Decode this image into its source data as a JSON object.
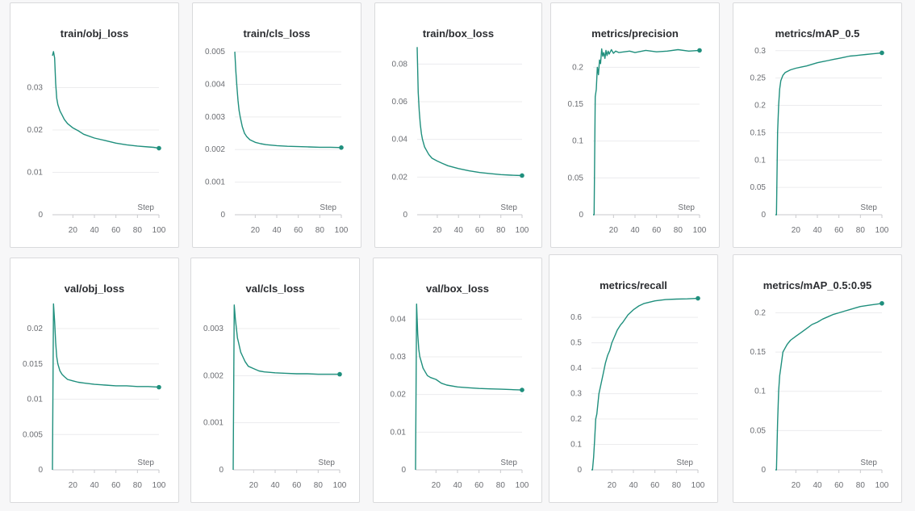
{
  "colors": {
    "series": "#1f8f7d",
    "grid": "#ececee",
    "axis": "#c9cacd"
  },
  "x_axis_label": "Step",
  "chart_data": [
    {
      "type": "line",
      "title": "train/obj_loss",
      "xlim": [
        1,
        100
      ],
      "xticks": [
        20,
        40,
        60,
        80,
        100
      ],
      "ylim": [
        0,
        0.04
      ],
      "yticks": [
        "0",
        "0.01",
        "0.02",
        "0.03"
      ],
      "series": [
        {
          "name": "",
          "x": [
            1,
            2,
            3,
            4,
            5,
            6,
            8,
            10,
            12,
            15,
            20,
            25,
            30,
            40,
            50,
            60,
            70,
            80,
            90,
            95,
            100
          ],
          "y": [
            0.0375,
            0.0385,
            0.037,
            0.031,
            0.0275,
            0.026,
            0.0245,
            0.0235,
            0.0225,
            0.0215,
            0.0205,
            0.0198,
            0.019,
            0.0181,
            0.0175,
            0.0169,
            0.0165,
            0.0162,
            0.016,
            0.0159,
            0.0157
          ]
        }
      ]
    },
    {
      "type": "line",
      "title": "train/cls_loss",
      "xlim": [
        1,
        100
      ],
      "xticks": [
        20,
        40,
        60,
        80,
        100
      ],
      "ylim": [
        0,
        0.0052
      ],
      "yticks": [
        "0",
        "0.001",
        "0.002",
        "0.003",
        "0.004",
        "0.005"
      ],
      "series": [
        {
          "name": "",
          "x": [
            1,
            2,
            3,
            4,
            5,
            6,
            8,
            10,
            12,
            15,
            20,
            25,
            30,
            40,
            50,
            60,
            70,
            80,
            90,
            100
          ],
          "y": [
            0.005,
            0.0044,
            0.0039,
            0.0035,
            0.0032,
            0.003,
            0.0027,
            0.0025,
            0.0024,
            0.0023,
            0.00222,
            0.00218,
            0.00215,
            0.00212,
            0.0021,
            0.00209,
            0.00208,
            0.00207,
            0.00207,
            0.00206
          ]
        }
      ]
    },
    {
      "type": "line",
      "title": "train/box_loss",
      "xlim": [
        1,
        100
      ],
      "xticks": [
        20,
        40,
        60,
        80,
        100
      ],
      "ylim": [
        0,
        0.09
      ],
      "yticks": [
        "0",
        "0.02",
        "0.04",
        "0.06",
        "0.08"
      ],
      "series": [
        {
          "name": "",
          "x": [
            1,
            2,
            3,
            4,
            5,
            6,
            8,
            10,
            12,
            15,
            20,
            25,
            30,
            40,
            50,
            60,
            70,
            80,
            90,
            100
          ],
          "y": [
            0.089,
            0.065,
            0.055,
            0.048,
            0.043,
            0.04,
            0.036,
            0.034,
            0.032,
            0.03,
            0.0285,
            0.0272,
            0.026,
            0.0245,
            0.0233,
            0.0224,
            0.0218,
            0.0213,
            0.021,
            0.0208
          ]
        }
      ]
    },
    {
      "type": "line",
      "title": "metrics/precision",
      "xlim": [
        1,
        100
      ],
      "xticks": [
        20,
        40,
        60,
        80,
        100
      ],
      "ylim": [
        0,
        0.23
      ],
      "yticks": [
        "0",
        "0.05",
        "0.1",
        "0.15",
        "0.2"
      ],
      "series": [
        {
          "name": "",
          "x": [
            1,
            2,
            3,
            4,
            5,
            6,
            7,
            8,
            9,
            10,
            11,
            12,
            13,
            14,
            15,
            16,
            18,
            20,
            22,
            25,
            30,
            35,
            40,
            50,
            60,
            70,
            80,
            90,
            100
          ],
          "y": [
            0,
            0,
            0.16,
            0.17,
            0.2,
            0.19,
            0.21,
            0.205,
            0.225,
            0.215,
            0.22,
            0.212,
            0.223,
            0.216,
            0.222,
            0.218,
            0.224,
            0.219,
            0.222,
            0.22,
            0.221,
            0.222,
            0.22,
            0.223,
            0.221,
            0.222,
            0.224,
            0.222,
            0.223
          ]
        }
      ]
    },
    {
      "type": "line",
      "title": "metrics/mAP_0.5",
      "xlim": [
        1,
        100
      ],
      "xticks": [
        20,
        40,
        60,
        80,
        100
      ],
      "ylim": [
        0,
        0.31
      ],
      "yticks": [
        "0",
        "0.05",
        "0.1",
        "0.15",
        "0.2",
        "0.25",
        "0.3"
      ],
      "series": [
        {
          "name": "",
          "x": [
            1,
            2,
            3,
            4,
            5,
            6,
            7,
            8,
            10,
            12,
            15,
            20,
            25,
            30,
            35,
            40,
            45,
            50,
            55,
            60,
            65,
            70,
            75,
            80,
            85,
            90,
            95,
            100
          ],
          "y": [
            0,
            0,
            0.15,
            0.2,
            0.23,
            0.245,
            0.25,
            0.255,
            0.26,
            0.262,
            0.265,
            0.268,
            0.27,
            0.272,
            0.275,
            0.278,
            0.28,
            0.282,
            0.284,
            0.286,
            0.288,
            0.29,
            0.291,
            0.292,
            0.293,
            0.294,
            0.295,
            0.296
          ]
        }
      ]
    },
    {
      "type": "line",
      "title": "val/obj_loss",
      "xlim": [
        1,
        100
      ],
      "xticks": [
        20,
        40,
        60,
        80,
        100
      ],
      "ylim": [
        0,
        0.024
      ],
      "yticks": [
        "0",
        "0.005",
        "0.01",
        "0.015",
        "0.02"
      ],
      "series": [
        {
          "name": "",
          "x": [
            1,
            2,
            3,
            4,
            5,
            6,
            8,
            10,
            12,
            15,
            20,
            25,
            30,
            40,
            50,
            60,
            70,
            80,
            90,
            100
          ],
          "y": [
            0,
            0.0235,
            0.021,
            0.018,
            0.016,
            0.015,
            0.014,
            0.0135,
            0.0132,
            0.0128,
            0.0126,
            0.0124,
            0.0123,
            0.0121,
            0.012,
            0.0119,
            0.0119,
            0.0118,
            0.0118,
            0.0117
          ]
        }
      ]
    },
    {
      "type": "line",
      "title": "val/cls_loss",
      "xlim": [
        1,
        100
      ],
      "xticks": [
        20,
        40,
        60,
        80,
        100
      ],
      "ylim": [
        0,
        0.0036
      ],
      "yticks": [
        "0",
        "0.001",
        "0.002",
        "0.003"
      ],
      "series": [
        {
          "name": "",
          "x": [
            1,
            2,
            3,
            4,
            5,
            6,
            8,
            10,
            12,
            15,
            20,
            25,
            30,
            40,
            50,
            60,
            70,
            80,
            90,
            100
          ],
          "y": [
            0,
            0.0035,
            0.0032,
            0.003,
            0.0028,
            0.0027,
            0.0025,
            0.0024,
            0.0023,
            0.0022,
            0.00215,
            0.0021,
            0.00208,
            0.00206,
            0.00205,
            0.00204,
            0.00204,
            0.00203,
            0.00203,
            0.00203
          ]
        }
      ]
    },
    {
      "type": "line",
      "title": "val/box_loss",
      "xlim": [
        1,
        100
      ],
      "xticks": [
        20,
        40,
        60,
        80,
        100
      ],
      "ylim": [
        0,
        0.045
      ],
      "yticks": [
        "0",
        "0.01",
        "0.02",
        "0.03",
        "0.04"
      ],
      "series": [
        {
          "name": "",
          "x": [
            1,
            2,
            3,
            4,
            5,
            6,
            8,
            10,
            12,
            15,
            20,
            25,
            30,
            40,
            50,
            60,
            70,
            80,
            90,
            100
          ],
          "y": [
            0,
            0.044,
            0.036,
            0.032,
            0.03,
            0.029,
            0.027,
            0.026,
            0.025,
            0.0245,
            0.024,
            0.023,
            0.0225,
            0.022,
            0.0218,
            0.0216,
            0.0215,
            0.0214,
            0.0213,
            0.0212
          ]
        }
      ]
    },
    {
      "type": "line",
      "title": "metrics/recall",
      "xlim": [
        1,
        100
      ],
      "xticks": [
        20,
        40,
        60,
        80,
        100
      ],
      "ylim": [
        0,
        0.68
      ],
      "yticks": [
        "0",
        "0.1",
        "0.2",
        "0.3",
        "0.4",
        "0.5",
        "0.6"
      ],
      "series": [
        {
          "name": "",
          "x": [
            1,
            2,
            3,
            4,
            5,
            6,
            7,
            8,
            10,
            12,
            14,
            16,
            18,
            20,
            22,
            25,
            28,
            30,
            35,
            40,
            45,
            50,
            55,
            60,
            70,
            80,
            90,
            100
          ],
          "y": [
            0,
            0,
            0.05,
            0.12,
            0.2,
            0.22,
            0.26,
            0.3,
            0.34,
            0.38,
            0.42,
            0.45,
            0.47,
            0.5,
            0.52,
            0.55,
            0.57,
            0.58,
            0.61,
            0.63,
            0.645,
            0.655,
            0.66,
            0.665,
            0.67,
            0.672,
            0.673,
            0.675
          ]
        }
      ]
    },
    {
      "type": "line",
      "title": "metrics/mAP_0.5:0.95",
      "xlim": [
        1,
        100
      ],
      "xticks": [
        20,
        40,
        60,
        80,
        100
      ],
      "ylim": [
        0,
        0.22
      ],
      "yticks": [
        "0",
        "0.05",
        "0.1",
        "0.15",
        "0.2"
      ],
      "series": [
        {
          "name": "",
          "x": [
            1,
            2,
            3,
            4,
            5,
            6,
            7,
            8,
            10,
            12,
            15,
            20,
            25,
            30,
            35,
            40,
            45,
            50,
            55,
            60,
            65,
            70,
            75,
            80,
            85,
            90,
            95,
            100
          ],
          "y": [
            0,
            0,
            0.06,
            0.1,
            0.12,
            0.13,
            0.14,
            0.15,
            0.155,
            0.16,
            0.165,
            0.17,
            0.175,
            0.18,
            0.185,
            0.188,
            0.192,
            0.195,
            0.198,
            0.2,
            0.202,
            0.204,
            0.206,
            0.208,
            0.209,
            0.21,
            0.211,
            0.212
          ]
        }
      ]
    }
  ]
}
